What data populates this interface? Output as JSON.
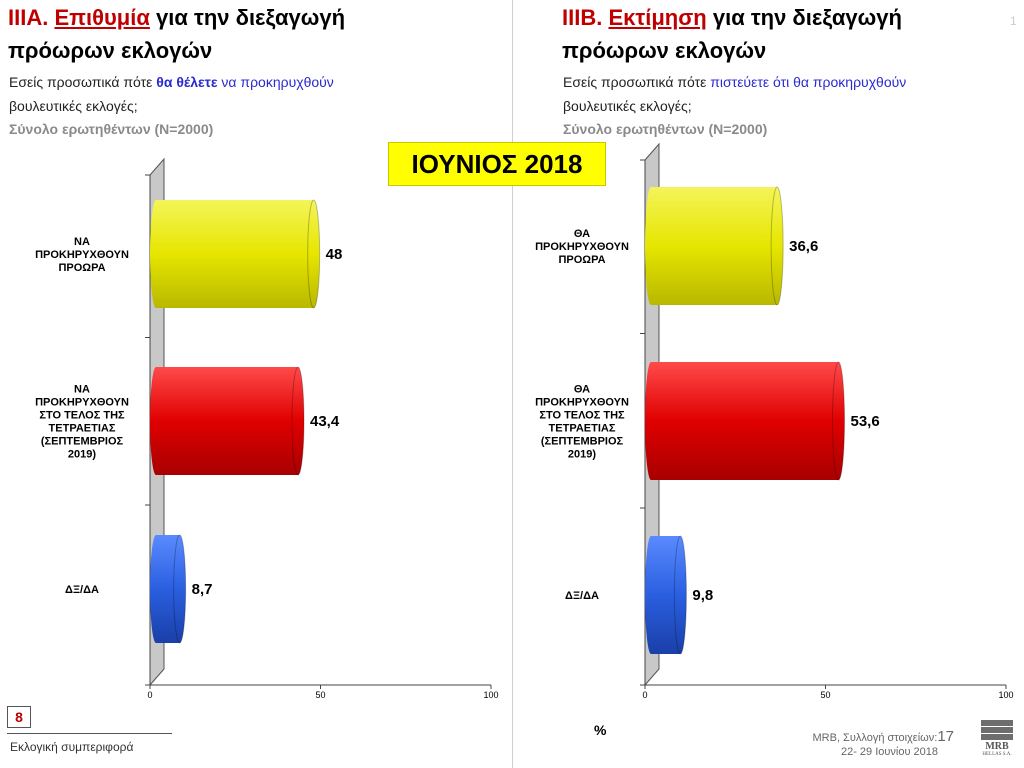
{
  "date_badge": "ΙΟΥΝΙΟΣ 2018",
  "corner_mark": "1",
  "left": {
    "code": "ΙΙΙΑ.",
    "title_underlined": "Επιθυμία",
    "title_rest": " για την διεξαγωγή",
    "title_line2": "πρόωρων εκλογών",
    "question_a": "Εσείς προσωπικά πότε ",
    "question_b": "θα θέλετε",
    "question_c": " να προκηρυχθούν",
    "question_line2": "βουλευτικές εκλογές;",
    "base": "Σύνολο ερωτηθέντων (N=2000)"
  },
  "right": {
    "code": "ΙΙΙΒ.",
    "title_underlined": "Εκτίμηση",
    "title_rest": " για την διεξαγωγή",
    "title_line2": "πρόωρων εκλογών",
    "question_a": "Εσείς προσωπικά πότε ",
    "question_b": "πιστεύετε ότι θα προκηρυχθούν",
    "question_line2": "βουλευτικές εκλογές;",
    "base": "Σύνολο ερωτηθέντων (N=2000)"
  },
  "chart_data": [
    {
      "type": "bar",
      "orientation": "horizontal",
      "categories": [
        [
          "ΝΑ",
          "ΠΡΟΚΗΡΥΧΘΟΥΝ",
          "ΠΡΟΩΡΑ"
        ],
        [
          "ΝΑ",
          "ΠΡΟΚΗΡΥΧΘΟΥΝ",
          "ΣΤΟ ΤΕΛΟΣ ΤΗΣ",
          "ΤΕΤΡΑΕΤΙΑΣ",
          "(ΣΕΠΤΕΜΒΡΙΟΣ",
          "2019)"
        ],
        [
          "ΔΞ/ΔΑ"
        ]
      ],
      "values": [
        48,
        43.4,
        8.7
      ],
      "value_labels": [
        "48",
        "43,4",
        "8,7"
      ],
      "colors": [
        "#e6e600",
        "#e00000",
        "#2a5fe0"
      ],
      "xlim": [
        0,
        100
      ],
      "ticks": [
        "0",
        "50",
        "100"
      ],
      "grid": false
    },
    {
      "type": "bar",
      "orientation": "horizontal",
      "categories": [
        [
          "ΘΑ",
          "ΠΡΟΚΗΡΥΧΘΟΥΝ",
          "ΠΡΟΩΡΑ"
        ],
        [
          "ΘΑ",
          "ΠΡΟΚΗΡΥΧΘΟΥΝ",
          "ΣΤΟ ΤΕΛΟΣ ΤΗΣ",
          "ΤΕΤΡΑΕΤΙΑΣ",
          "(ΣΕΠΤΕΜΒΡΙΟΣ",
          "2019)"
        ],
        [
          "ΔΞ/ΔΑ"
        ]
      ],
      "values": [
        36.6,
        53.6,
        9.8
      ],
      "value_labels": [
        "36,6",
        "53,6",
        "9,8"
      ],
      "colors": [
        "#e6e600",
        "#e00000",
        "#2a5fe0"
      ],
      "xlim": [
        0,
        100
      ],
      "ticks": [
        "0",
        "50",
        "100"
      ],
      "grid": false
    }
  ],
  "footer": {
    "page_number": "8",
    "section": "Εκλογική συμπεριφορά",
    "unit": "%",
    "source_prefix": "MRB, Συλλογή στοιχείων:",
    "source_num": "17",
    "source_date": "22- 29 Ιουνίου 2018",
    "logo_text": "MRB",
    "logo_sub": "HELLAS S.A."
  }
}
